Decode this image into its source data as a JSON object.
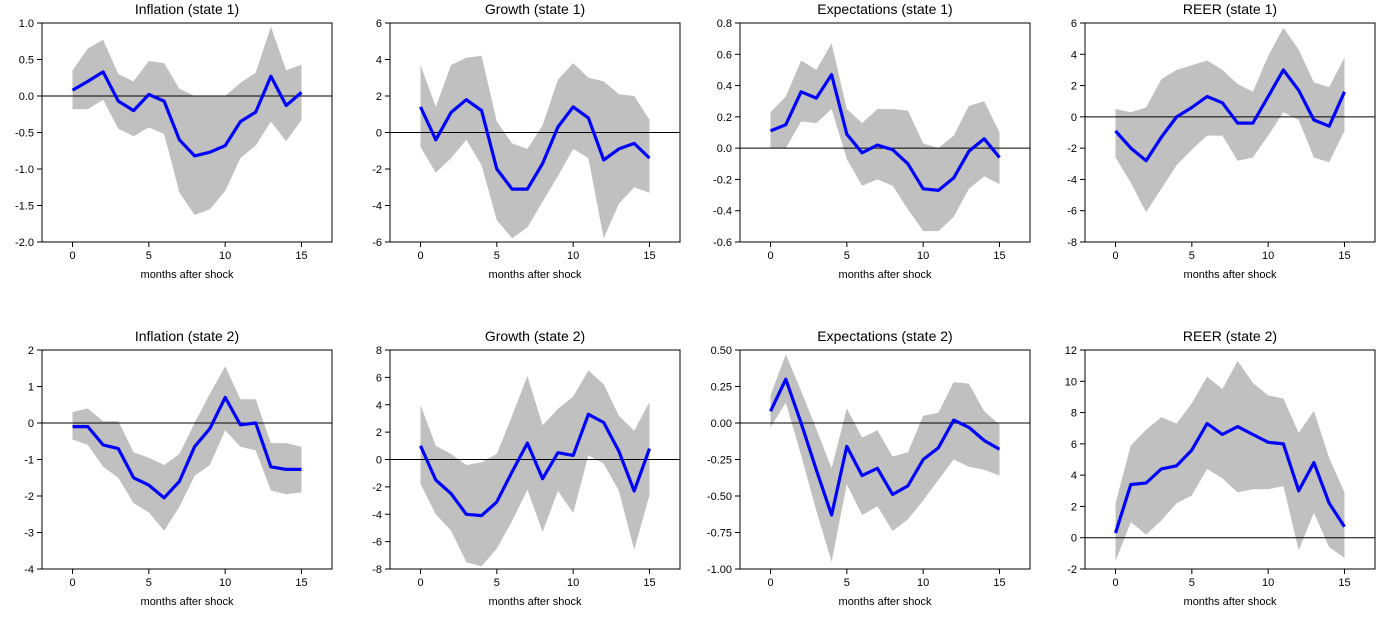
{
  "colors": {
    "line": "#0000ff",
    "band": "#c0c0c0",
    "axis": "#000000",
    "zero": "#000000"
  },
  "chart_data": [
    {
      "type": "line",
      "title": "Inflation (state 1)",
      "xlabel": "months after shock",
      "ylabel": "",
      "xlim": [
        -2,
        17
      ],
      "ylim": [
        -2.0,
        1.0
      ],
      "xticks": [
        0,
        5,
        10,
        15
      ],
      "xtick_labels": [
        "0",
        "5",
        "10",
        "15"
      ],
      "yticks": [
        -2.0,
        -1.5,
        -1.0,
        -0.5,
        0.0,
        0.5,
        1.0
      ],
      "ytick_labels": [
        "-2.0",
        "-1.5",
        "-1.0",
        "-0.5",
        "0.0",
        "0.5",
        "1.0"
      ],
      "x": [
        0,
        1,
        2,
        3,
        4,
        5,
        6,
        7,
        8,
        9,
        10,
        11,
        12,
        13,
        14,
        15
      ],
      "series": [
        {
          "name": "response",
          "values": [
            0.08,
            0.2,
            0.33,
            -0.07,
            -0.2,
            0.02,
            -0.07,
            -0.6,
            -0.82,
            -0.77,
            -0.68,
            -0.35,
            -0.22,
            0.27,
            -0.13,
            0.05
          ]
        },
        {
          "name": "lower",
          "values": [
            -0.18,
            -0.18,
            -0.05,
            -0.45,
            -0.55,
            -0.43,
            -0.52,
            -1.32,
            -1.63,
            -1.55,
            -1.3,
            -0.85,
            -0.68,
            -0.35,
            -0.62,
            -0.33
          ]
        },
        {
          "name": "upper",
          "values": [
            0.35,
            0.65,
            0.77,
            0.3,
            0.2,
            0.48,
            0.45,
            0.1,
            0.0,
            0.0,
            0.0,
            0.18,
            0.32,
            0.95,
            0.35,
            0.43
          ]
        }
      ]
    },
    {
      "type": "line",
      "title": "Growth (state 1)",
      "xlabel": "months after shock",
      "ylabel": "",
      "xlim": [
        -2,
        17
      ],
      "ylim": [
        -6,
        6
      ],
      "xticks": [
        0,
        5,
        10,
        15
      ],
      "xtick_labels": [
        "0",
        "5",
        "10",
        "15"
      ],
      "yticks": [
        -6,
        -4,
        -2,
        0,
        2,
        4,
        6
      ],
      "ytick_labels": [
        "-6",
        "-4",
        "-2",
        "0",
        "2",
        "4",
        "6"
      ],
      "x": [
        0,
        1,
        2,
        3,
        4,
        5,
        6,
        7,
        8,
        9,
        10,
        11,
        12,
        13,
        14,
        15
      ],
      "series": [
        {
          "name": "response",
          "values": [
            1.4,
            -0.4,
            1.1,
            1.8,
            1.2,
            -2.0,
            -3.1,
            -3.1,
            -1.7,
            0.3,
            1.4,
            0.8,
            -1.5,
            -0.9,
            -0.6,
            -1.4
          ]
        },
        {
          "name": "lower",
          "values": [
            -0.8,
            -2.2,
            -1.4,
            -0.4,
            -1.8,
            -4.8,
            -5.8,
            -5.2,
            -3.8,
            -2.4,
            -0.9,
            -1.4,
            -5.8,
            -3.9,
            -3.0,
            -3.3
          ]
        },
        {
          "name": "upper",
          "values": [
            3.7,
            1.4,
            3.7,
            4.1,
            4.2,
            0.6,
            -0.6,
            -0.9,
            0.4,
            2.9,
            3.8,
            3.0,
            2.8,
            2.1,
            2.0,
            0.7
          ]
        }
      ]
    },
    {
      "type": "line",
      "title": "Expectations (state 1)",
      "xlabel": "months after shock",
      "ylabel": "",
      "xlim": [
        -2,
        17
      ],
      "ylim": [
        -0.6,
        0.8
      ],
      "xticks": [
        0,
        5,
        10,
        15
      ],
      "xtick_labels": [
        "0",
        "5",
        "10",
        "15"
      ],
      "yticks": [
        -0.6,
        -0.4,
        -0.2,
        0.0,
        0.2,
        0.4,
        0.6,
        0.8
      ],
      "ytick_labels": [
        "-0.6",
        "-0.4",
        "-0.2",
        "0.0",
        "0.2",
        "0.4",
        "0.6",
        "0.8"
      ],
      "x": [
        0,
        1,
        2,
        3,
        4,
        5,
        6,
        7,
        8,
        9,
        10,
        11,
        12,
        13,
        14,
        15
      ],
      "series": [
        {
          "name": "response",
          "values": [
            0.11,
            0.15,
            0.36,
            0.32,
            0.47,
            0.09,
            -0.03,
            0.02,
            -0.01,
            -0.1,
            -0.26,
            -0.27,
            -0.19,
            -0.02,
            0.06,
            -0.06
          ]
        },
        {
          "name": "lower",
          "values": [
            0.0,
            0.0,
            0.17,
            0.16,
            0.25,
            -0.07,
            -0.24,
            -0.2,
            -0.24,
            -0.39,
            -0.53,
            -0.53,
            -0.44,
            -0.26,
            -0.18,
            -0.23
          ]
        },
        {
          "name": "upper",
          "values": [
            0.23,
            0.33,
            0.56,
            0.5,
            0.67,
            0.25,
            0.16,
            0.25,
            0.25,
            0.24,
            0.03,
            0.0,
            0.08,
            0.27,
            0.3,
            0.1
          ]
        }
      ]
    },
    {
      "type": "line",
      "title": "REER (state 1)",
      "xlabel": "months after shock",
      "ylabel": "",
      "xlim": [
        -2,
        17
      ],
      "ylim": [
        -8,
        6
      ],
      "xticks": [
        0,
        5,
        10,
        15
      ],
      "xtick_labels": [
        "0",
        "5",
        "10",
        "15"
      ],
      "yticks": [
        -8,
        -6,
        -4,
        -2,
        0,
        2,
        4,
        6
      ],
      "ytick_labels": [
        "-8",
        "-6",
        "-4",
        "-2",
        "0",
        "2",
        "4",
        "6"
      ],
      "x": [
        0,
        1,
        2,
        3,
        4,
        5,
        6,
        7,
        8,
        9,
        10,
        11,
        12,
        13,
        14,
        15
      ],
      "series": [
        {
          "name": "response",
          "values": [
            -0.9,
            -2.0,
            -2.8,
            -1.3,
            0.0,
            0.6,
            1.3,
            0.9,
            -0.4,
            -0.4,
            1.3,
            3.0,
            1.7,
            -0.2,
            -0.6,
            1.6
          ]
        },
        {
          "name": "lower",
          "values": [
            -2.6,
            -4.2,
            -6.1,
            -4.6,
            -3.1,
            -2.1,
            -1.2,
            -1.2,
            -2.8,
            -2.6,
            -1.2,
            0.3,
            -0.2,
            -2.6,
            -2.9,
            -0.9
          ]
        },
        {
          "name": "upper",
          "values": [
            0.5,
            0.3,
            0.6,
            2.4,
            3.0,
            3.3,
            3.6,
            3.0,
            2.1,
            1.6,
            3.9,
            5.7,
            4.3,
            2.2,
            1.9,
            3.8
          ]
        }
      ]
    },
    {
      "type": "line",
      "title": "Inflation (state 2)",
      "xlabel": "months after shock",
      "ylabel": "",
      "xlim": [
        -2,
        17
      ],
      "ylim": [
        -4,
        2
      ],
      "xticks": [
        0,
        5,
        10,
        15
      ],
      "xtick_labels": [
        "0",
        "5",
        "10",
        "15"
      ],
      "yticks": [
        -4,
        -3,
        -2,
        -1,
        0,
        1,
        2
      ],
      "ytick_labels": [
        "-4",
        "-3",
        "-2",
        "-1",
        "0",
        "1",
        "2"
      ],
      "x": [
        0,
        1,
        2,
        3,
        4,
        5,
        6,
        7,
        8,
        9,
        10,
        11,
        12,
        13,
        14,
        15
      ],
      "series": [
        {
          "name": "response",
          "values": [
            -0.1,
            -0.1,
            -0.6,
            -0.7,
            -1.5,
            -1.7,
            -2.05,
            -1.6,
            -0.65,
            -0.15,
            0.7,
            -0.05,
            0.0,
            -1.2,
            -1.27,
            -1.27
          ]
        },
        {
          "name": "lower",
          "values": [
            -0.45,
            -0.6,
            -1.2,
            -1.5,
            -2.2,
            -2.45,
            -2.95,
            -2.3,
            -1.45,
            -1.15,
            -0.2,
            -0.65,
            -0.75,
            -1.85,
            -1.95,
            -1.9
          ]
        },
        {
          "name": "upper",
          "values": [
            0.3,
            0.4,
            0.05,
            0.05,
            -0.8,
            -0.95,
            -1.15,
            -0.85,
            0.0,
            0.8,
            1.55,
            0.65,
            0.65,
            -0.55,
            -0.55,
            -0.65
          ]
        }
      ]
    },
    {
      "type": "line",
      "title": "Growth (state 2)",
      "xlabel": "months after shock",
      "ylabel": "",
      "xlim": [
        -2,
        17
      ],
      "ylim": [
        -8,
        8
      ],
      "xticks": [
        0,
        5,
        10,
        15
      ],
      "xtick_labels": [
        "0",
        "5",
        "10",
        "15"
      ],
      "yticks": [
        -8,
        -6,
        -4,
        -2,
        0,
        2,
        4,
        6,
        8
      ],
      "ytick_labels": [
        "-8",
        "-6",
        "-4",
        "-2",
        "0",
        "2",
        "4",
        "6",
        "8"
      ],
      "x": [
        0,
        1,
        2,
        3,
        4,
        5,
        6,
        7,
        8,
        9,
        10,
        11,
        12,
        13,
        14,
        15
      ],
      "series": [
        {
          "name": "response",
          "values": [
            1.0,
            -1.5,
            -2.5,
            -4.0,
            -4.1,
            -3.1,
            -0.9,
            1.2,
            -1.4,
            0.5,
            0.3,
            3.3,
            2.7,
            0.6,
            -2.3,
            0.8
          ]
        },
        {
          "name": "lower",
          "values": [
            -1.8,
            -4.0,
            -5.2,
            -7.5,
            -7.8,
            -6.5,
            -4.5,
            -2.2,
            -5.3,
            -2.3,
            -3.9,
            0.3,
            -0.3,
            -2.3,
            -6.6,
            -2.6
          ]
        },
        {
          "name": "upper",
          "values": [
            4.0,
            1.0,
            0.4,
            -0.4,
            -0.2,
            0.4,
            3.2,
            6.1,
            2.5,
            3.7,
            4.6,
            6.5,
            5.5,
            3.2,
            2.1,
            4.2
          ]
        }
      ]
    },
    {
      "type": "line",
      "title": "Expectations (state 2)",
      "xlabel": "months after shock",
      "ylabel": "",
      "xlim": [
        -2,
        17
      ],
      "ylim": [
        -1.0,
        0.5
      ],
      "xticks": [
        0,
        5,
        10,
        15
      ],
      "xtick_labels": [
        "0",
        "5",
        "10",
        "15"
      ],
      "yticks": [
        -1.0,
        -0.75,
        -0.5,
        -0.25,
        0.0,
        0.25,
        0.5
      ],
      "ytick_labels": [
        "-1.00",
        "-0.75",
        "-0.50",
        "-0.25",
        "0.00",
        "0.25",
        "0.50"
      ],
      "x": [
        0,
        1,
        2,
        3,
        4,
        5,
        6,
        7,
        8,
        9,
        10,
        11,
        12,
        13,
        14,
        15
      ],
      "series": [
        {
          "name": "response",
          "values": [
            0.08,
            0.3,
            0.0,
            -0.32,
            -0.63,
            -0.16,
            -0.36,
            -0.31,
            -0.49,
            -0.43,
            -0.25,
            -0.17,
            0.02,
            -0.03,
            -0.12,
            -0.18
          ]
        },
        {
          "name": "lower",
          "values": [
            -0.03,
            0.14,
            -0.22,
            -0.6,
            -0.95,
            -0.42,
            -0.63,
            -0.57,
            -0.74,
            -0.66,
            -0.53,
            -0.39,
            -0.25,
            -0.3,
            -0.32,
            -0.36
          ]
        },
        {
          "name": "upper",
          "values": [
            0.19,
            0.47,
            0.22,
            -0.04,
            -0.31,
            0.1,
            -0.1,
            -0.05,
            -0.23,
            -0.2,
            0.05,
            0.07,
            0.28,
            0.27,
            0.08,
            -0.01
          ]
        }
      ]
    },
    {
      "type": "line",
      "title": "REER (state 2)",
      "xlabel": "months after shock",
      "ylabel": "",
      "xlim": [
        -2,
        17
      ],
      "ylim": [
        -2,
        12
      ],
      "xticks": [
        0,
        5,
        10,
        15
      ],
      "xtick_labels": [
        "0",
        "5",
        "10",
        "15"
      ],
      "yticks": [
        -2,
        0,
        2,
        4,
        6,
        8,
        10,
        12
      ],
      "ytick_labels": [
        "-2",
        "0",
        "2",
        "4",
        "6",
        "8",
        "10",
        "12"
      ],
      "x": [
        0,
        1,
        2,
        3,
        4,
        5,
        6,
        7,
        8,
        9,
        10,
        11,
        12,
        13,
        14,
        15
      ],
      "series": [
        {
          "name": "response",
          "values": [
            0.3,
            3.4,
            3.5,
            4.4,
            4.6,
            5.6,
            7.3,
            6.6,
            7.1,
            6.6,
            6.1,
            6.0,
            3.0,
            4.8,
            2.2,
            0.7
          ]
        },
        {
          "name": "lower",
          "values": [
            -1.5,
            1.0,
            0.2,
            1.1,
            2.2,
            2.7,
            4.4,
            3.8,
            2.9,
            3.1,
            3.1,
            3.3,
            -0.8,
            1.6,
            -0.6,
            -1.3
          ]
        },
        {
          "name": "upper",
          "values": [
            2.2,
            5.9,
            6.9,
            7.7,
            7.3,
            8.6,
            10.3,
            9.5,
            11.3,
            9.9,
            9.1,
            8.9,
            6.7,
            8.1,
            5.1,
            2.9
          ]
        }
      ]
    }
  ]
}
